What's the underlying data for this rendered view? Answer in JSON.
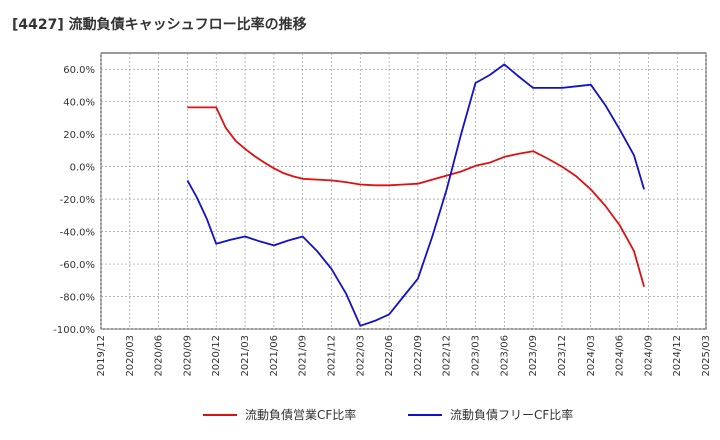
{
  "chart_data": {
    "type": "line",
    "title": "[4427]  流動負債キャッシュフロー比率の推移",
    "x": [
      "2019/12",
      "2020/03",
      "2020/06",
      "2020/09",
      "2020/12",
      "2021/03",
      "2021/06",
      "2021/09",
      "2021/12",
      "2022/03",
      "2022/06",
      "2022/09",
      "2022/12",
      "2023/03",
      "2023/06",
      "2023/09",
      "2023/12",
      "2024/03",
      "2024/06",
      "2024/09",
      "2024/12",
      "2025/03"
    ],
    "ylim": [
      -100,
      70
    ],
    "yticks": [
      -100,
      -80,
      -60,
      -40,
      -20,
      0,
      20,
      40,
      60
    ],
    "ytick_labels": [
      "-100.0%",
      "-80.0%",
      "-60.0%",
      "-40.0%",
      "-20.0%",
      "0.0%",
      "20.0%",
      "40.0%",
      "60.0%"
    ],
    "grid": true,
    "legend_position": "bottom",
    "series": [
      {
        "name": "流動負債営業CF比率",
        "color": "#dd1111",
        "points": [
          [
            3,
            36.5
          ],
          [
            4,
            36.5
          ],
          [
            4.33,
            24
          ],
          [
            4.67,
            16
          ],
          [
            5,
            11
          ],
          [
            5.33,
            6.5
          ],
          [
            5.67,
            2.5
          ],
          [
            6,
            -1
          ],
          [
            6.33,
            -4
          ],
          [
            6.67,
            -6
          ],
          [
            7,
            -7.5
          ],
          [
            7.5,
            -8
          ],
          [
            8,
            -8.5
          ],
          [
            8.5,
            -9.5
          ],
          [
            9,
            -11
          ],
          [
            9.5,
            -11.5
          ],
          [
            10,
            -11.5
          ],
          [
            10.5,
            -11
          ],
          [
            11,
            -10.5
          ],
          [
            11.5,
            -8
          ],
          [
            12,
            -5.5
          ],
          [
            12.5,
            -3
          ],
          [
            13,
            0.5
          ],
          [
            13.5,
            2.5
          ],
          [
            14,
            6
          ],
          [
            14.5,
            8
          ],
          [
            15,
            9.5
          ],
          [
            15.5,
            5
          ],
          [
            16,
            0
          ],
          [
            16.5,
            -6
          ],
          [
            17,
            -14
          ],
          [
            17.5,
            -24
          ],
          [
            18,
            -36
          ],
          [
            18.5,
            -52
          ],
          [
            18.85,
            -74
          ]
        ]
      },
      {
        "name": "流動負債フリーCF比率",
        "color": "#1111cc",
        "points": [
          [
            3,
            -8.5
          ],
          [
            3.33,
            -19
          ],
          [
            3.67,
            -32
          ],
          [
            4,
            -47.5
          ],
          [
            4.5,
            -45
          ],
          [
            5,
            -43
          ],
          [
            5.5,
            -46
          ],
          [
            6,
            -48.5
          ],
          [
            6.5,
            -45.5
          ],
          [
            7,
            -43
          ],
          [
            7.5,
            -52
          ],
          [
            8,
            -63
          ],
          [
            8.5,
            -78
          ],
          [
            9,
            -98
          ],
          [
            9.5,
            -95
          ],
          [
            10,
            -91
          ],
          [
            10.5,
            -80
          ],
          [
            11,
            -69
          ],
          [
            11.5,
            -43
          ],
          [
            12,
            -14
          ],
          [
            12.5,
            20
          ],
          [
            13,
            51.5
          ],
          [
            13.5,
            56.5
          ],
          [
            14,
            63
          ],
          [
            14.5,
            55.5
          ],
          [
            15,
            48.5
          ],
          [
            15.5,
            48.5
          ],
          [
            16,
            48.5
          ],
          [
            16.5,
            49.5
          ],
          [
            17,
            50.5
          ],
          [
            17.5,
            38
          ],
          [
            18,
            23
          ],
          [
            18.5,
            7
          ],
          [
            18.85,
            -14
          ]
        ]
      }
    ]
  }
}
